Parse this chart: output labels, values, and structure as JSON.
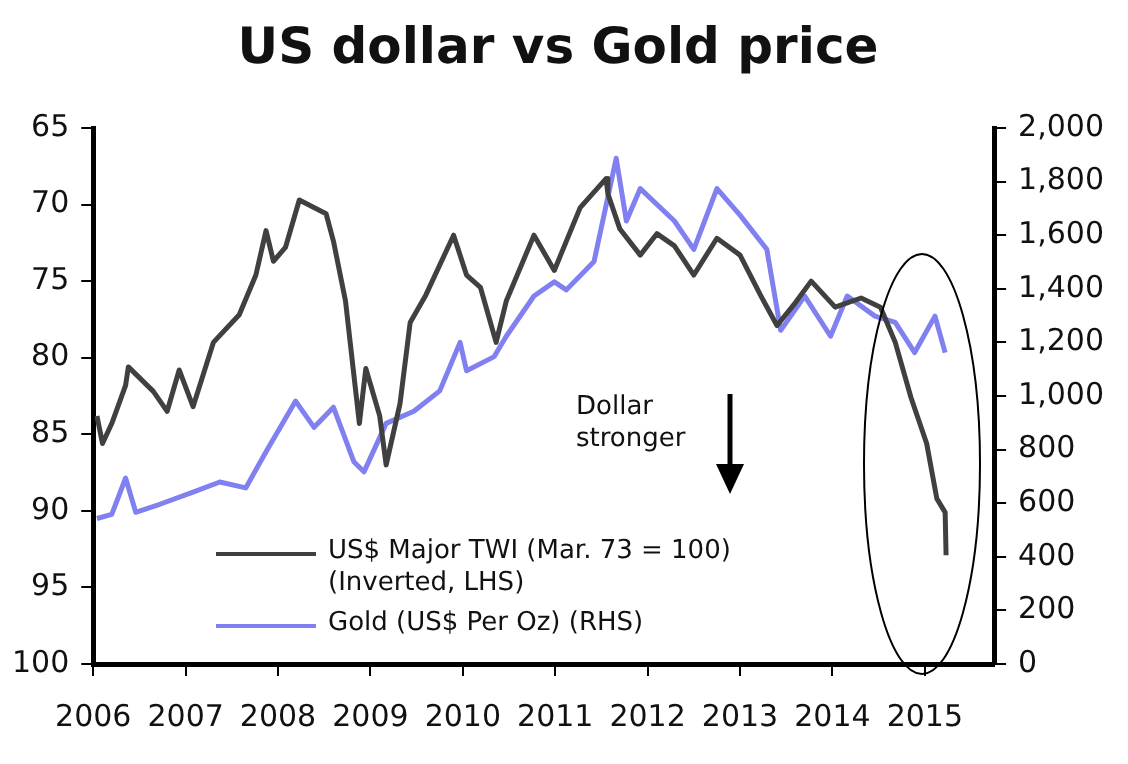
{
  "chart_data": {
    "type": "line",
    "title": "US dollar vs Gold price",
    "xlim": [
      2006,
      2015.75
    ],
    "xticks": [
      2006,
      2007,
      2008,
      2009,
      2010,
      2011,
      2012,
      2013,
      2014,
      2015
    ],
    "ylim": [
      100,
      65
    ],
    "yticks": [
      65,
      70,
      75,
      80,
      85,
      90,
      95,
      100
    ],
    "y2lim": [
      0,
      2000
    ],
    "y2ticks": [
      0,
      200,
      400,
      600,
      800,
      {
        "value": 1000,
        "label": "1,000"
      },
      {
        "value": 1200,
        "label": "1,200"
      },
      {
        "value": 1400,
        "label": "1,400"
      },
      {
        "value": 1600,
        "label": "1,600"
      },
      {
        "value": 1800,
        "label": "1,800"
      },
      {
        "value": 2000,
        "label": "2,000"
      }
    ],
    "legend": "bottom left",
    "marker": "none",
    "line_style": "solid",
    "annotations": [
      "Dollar stronger"
    ],
    "series": [
      {
        "name": "US$ Major TWI (Mar. 73 = 100) (Inverted, LHS)",
        "color": "#404040",
        "x": [
          2006.04,
          2006.1,
          2006.2,
          2006.35,
          2006.38,
          2006.65,
          2006.8,
          2006.93,
          2007.08,
          2007.3,
          2007.58,
          2007.76,
          2007.87,
          2007.95,
          2008.08,
          2008.23,
          2008.52,
          2008.6,
          2008.73,
          2008.88,
          2008.95,
          2009.1,
          2009.17,
          2009.32,
          2009.43,
          2009.6,
          2009.9,
          2010.04,
          2010.19,
          2010.36,
          2010.47,
          2010.77,
          2010.99,
          2011.27,
          2011.55,
          2011.57,
          2011.7,
          2011.92,
          2012.1,
          2012.29,
          2012.5,
          2012.75,
          2013.0,
          2013.22,
          2013.4,
          2013.6,
          2013.77,
          2014.03,
          2014.31,
          2014.52,
          2014.68,
          2014.85,
          2015.02,
          2015.13,
          2015.22,
          2015.23
        ],
        "values": [
          83.8,
          85.6,
          84.3,
          81.8,
          80.6,
          82.2,
          83.5,
          80.8,
          83.2,
          79,
          77.2,
          74.6,
          71.7,
          73.7,
          72.8,
          69.7,
          70.6,
          72.4,
          76.3,
          84.3,
          80.7,
          83.8,
          87,
          83,
          77.7,
          75.9,
          72,
          74.6,
          75.4,
          79,
          76.3,
          72,
          74.3,
          70.2,
          68.3,
          69.3,
          71.6,
          73.3,
          71.9,
          72.7,
          74.6,
          72.2,
          73.3,
          75.9,
          77.9,
          76.4,
          75,
          76.7,
          76.1,
          76.7,
          79,
          82.6,
          85.6,
          89.2,
          90.1,
          92.9
        ]
      },
      {
        "name": "Gold (US$ Per Oz) (RHS)",
        "color": "#8080f0",
        "axis": "y2",
        "x": [
          2006.04,
          2006.2,
          2006.35,
          2006.46,
          2006.72,
          2007.08,
          2007.37,
          2007.65,
          2007.87,
          2008.19,
          2008.39,
          2008.6,
          2008.82,
          2008.93,
          2009.17,
          2009.47,
          2009.75,
          2009.97,
          2010.04,
          2010.34,
          2010.47,
          2010.77,
          2010.99,
          2011.12,
          2011.42,
          2011.66,
          2011.77,
          2011.92,
          2012.29,
          2012.5,
          2012.75,
          2013.0,
          2013.29,
          2013.44,
          2013.7,
          2013.98,
          2014.16,
          2014.46,
          2014.68,
          2014.89,
          2015.11,
          2015.22
        ],
        "values": [
          543,
          558,
          694,
          566,
          596,
          641,
          679,
          657,
          792,
          981,
          883,
          958,
          755,
          717,
          898,
          943,
          1019,
          1200,
          1094,
          1147,
          1223,
          1373,
          1426,
          1396,
          1502,
          1887,
          1653,
          1774,
          1653,
          1547,
          1774,
          1675,
          1547,
          1245,
          1373,
          1223,
          1373,
          1298,
          1275,
          1162,
          1298,
          1162
        ]
      }
    ]
  }
}
